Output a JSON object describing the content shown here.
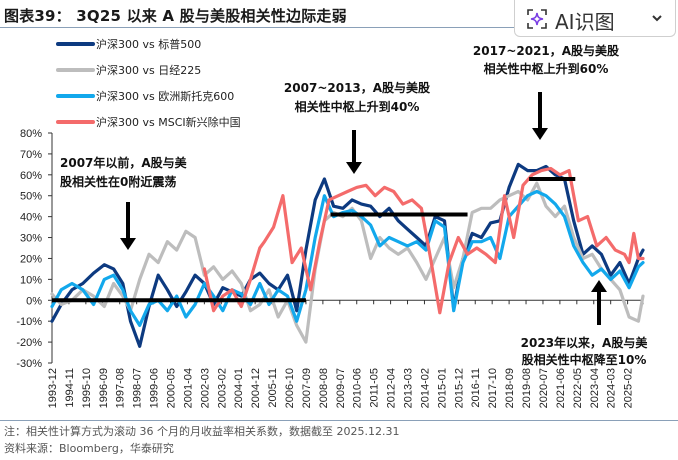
{
  "title": "图表39： 3Q25 以来 A 股与美股相关性边际走弱",
  "ai_button": {
    "label": "AI识图",
    "icon": "sparkle-scan-icon",
    "chevron": "chevron-down-icon",
    "accent": "#7b3fe4"
  },
  "notes": {
    "note": "注：相关性计算方式为滚动 36 个月的月收益率相关系数，数据截至 2025.12.31",
    "source": "资料来源：Bloomberg，华泰研究"
  },
  "chart_data": {
    "type": "line",
    "title": "3Q25 以来 A 股与美股相关性边际走弱",
    "xlabel": "",
    "ylabel": "",
    "ylim": [
      -30,
      80
    ],
    "y_unit": "%",
    "y_ticks": [
      "80%",
      "70%",
      "60%",
      "50%",
      "40%",
      "30%",
      "20%",
      "10%",
      "0%",
      "-10%",
      "-20%",
      "-30%"
    ],
    "x_range": [
      "1993-12",
      "2025-12"
    ],
    "x_ticks": [
      "1993-12",
      "1994-11",
      "1995-10",
      "1996-09",
      "1997-08",
      "1998-07",
      "1999-06",
      "2000-05",
      "2001-04",
      "2002-03",
      "2003-02",
      "2004-01",
      "2004-12",
      "2005-11",
      "2006-10",
      "2007-09",
      "2008-08",
      "2009-07",
      "2010-06",
      "2011-05",
      "2012-04",
      "2013-03",
      "2014-02",
      "2015-01",
      "2015-12",
      "2016-11",
      "2017-10",
      "2018-09",
      "2019-08",
      "2020-07",
      "2021-06",
      "2022-05",
      "2023-04",
      "2024-03",
      "2025-02"
    ],
    "legend_position": "top-left",
    "series": [
      {
        "name": "沪深300 vs 标普500",
        "color": "#0d3a80",
        "x": [
          "1993-12",
          "1994-06",
          "1995-01",
          "1995-08",
          "1996-03",
          "1996-10",
          "1997-04",
          "1997-10",
          "1998-03",
          "1998-09",
          "1999-03",
          "1999-09",
          "2000-03",
          "2000-09",
          "2001-03",
          "2001-09",
          "2002-03",
          "2002-09",
          "2003-03",
          "2003-09",
          "2004-03",
          "2004-09",
          "2005-03",
          "2005-09",
          "2006-03",
          "2006-09",
          "2007-03",
          "2007-09",
          "2008-03",
          "2008-09",
          "2009-03",
          "2009-09",
          "2010-03",
          "2010-09",
          "2011-03",
          "2011-09",
          "2012-03",
          "2012-09",
          "2013-03",
          "2013-09",
          "2014-03",
          "2014-09",
          "2015-03",
          "2015-09",
          "2016-03",
          "2016-09",
          "2017-03",
          "2017-09",
          "2018-03",
          "2018-09",
          "2019-03",
          "2019-09",
          "2020-03",
          "2020-09",
          "2021-03",
          "2021-09",
          "2022-03",
          "2022-09",
          "2023-03",
          "2023-09",
          "2024-03",
          "2024-09",
          "2025-03",
          "2025-09",
          "2025-12"
        ],
        "values": [
          -10,
          -2,
          5,
          8,
          13,
          17,
          15,
          8,
          -10,
          -22,
          -3,
          12,
          5,
          -3,
          4,
          12,
          8,
          -2,
          6,
          4,
          2,
          10,
          13,
          8,
          5,
          12,
          -5,
          24,
          48,
          58,
          45,
          44,
          48,
          46,
          45,
          40,
          44,
          38,
          34,
          30,
          26,
          40,
          38,
          -4,
          20,
          32,
          30,
          37,
          38,
          54,
          65,
          62,
          62,
          64,
          60,
          58,
          38,
          22,
          26,
          22,
          12,
          18,
          8,
          20,
          24
        ]
      },
      {
        "name": "沪深300 vs 日经225",
        "color": "#bdbdbd",
        "x": [
          "1993-12",
          "1994-06",
          "1995-01",
          "1995-08",
          "1996-03",
          "1996-10",
          "1997-04",
          "1997-10",
          "1998-03",
          "1998-09",
          "1999-03",
          "1999-09",
          "2000-03",
          "2000-09",
          "2001-03",
          "2001-09",
          "2002-03",
          "2002-09",
          "2003-03",
          "2003-09",
          "2004-03",
          "2004-09",
          "2005-03",
          "2005-09",
          "2006-03",
          "2006-09",
          "2007-03",
          "2007-09",
          "2008-03",
          "2008-09",
          "2009-03",
          "2009-09",
          "2010-03",
          "2010-09",
          "2011-03",
          "2011-09",
          "2012-03",
          "2012-09",
          "2013-03",
          "2013-09",
          "2014-03",
          "2014-09",
          "2015-03",
          "2015-09",
          "2016-03",
          "2016-09",
          "2017-03",
          "2017-09",
          "2018-03",
          "2018-09",
          "2019-03",
          "2019-09",
          "2020-03",
          "2020-09",
          "2021-03",
          "2021-09",
          "2022-03",
          "2022-09",
          "2023-03",
          "2023-09",
          "2024-03",
          "2024-09",
          "2025-03",
          "2025-09",
          "2025-12"
        ],
        "values": [
          3,
          -2,
          0,
          5,
          2,
          -3,
          8,
          2,
          -5,
          10,
          22,
          18,
          28,
          24,
          33,
          30,
          12,
          16,
          10,
          14,
          8,
          -5,
          -2,
          5,
          -8,
          0,
          -12,
          -20,
          15,
          38,
          42,
          40,
          44,
          38,
          20,
          30,
          25,
          22,
          25,
          18,
          10,
          20,
          30,
          6,
          20,
          42,
          44,
          44,
          48,
          50,
          52,
          48,
          56,
          45,
          40,
          45,
          30,
          20,
          22,
          15,
          10,
          5,
          -8,
          -10,
          2
        ]
      },
      {
        "name": "沪深300 vs 欧洲斯托克600",
        "color": "#12a8ec",
        "x": [
          "1993-12",
          "1994-06",
          "1995-01",
          "1995-08",
          "1996-03",
          "1996-10",
          "1997-04",
          "1997-10",
          "1998-03",
          "1998-09",
          "1999-03",
          "1999-09",
          "2000-03",
          "2000-09",
          "2001-03",
          "2001-09",
          "2002-03",
          "2002-09",
          "2003-03",
          "2003-09",
          "2004-03",
          "2004-09",
          "2005-03",
          "2005-09",
          "2006-03",
          "2006-09",
          "2007-03",
          "2007-09",
          "2008-03",
          "2008-09",
          "2009-03",
          "2009-09",
          "2010-03",
          "2010-09",
          "2011-03",
          "2011-09",
          "2012-03",
          "2012-09",
          "2013-03",
          "2013-09",
          "2014-03",
          "2014-09",
          "2015-03",
          "2015-09",
          "2016-03",
          "2016-09",
          "2017-03",
          "2017-09",
          "2018-03",
          "2018-09",
          "2019-03",
          "2019-09",
          "2020-03",
          "2020-09",
          "2021-03",
          "2021-09",
          "2022-03",
          "2022-09",
          "2023-03",
          "2023-09",
          "2024-03",
          "2024-09",
          "2025-03",
          "2025-09",
          "2025-12"
        ],
        "values": [
          -3,
          5,
          8,
          5,
          -2,
          10,
          12,
          5,
          -5,
          -12,
          -2,
          0,
          -5,
          2,
          -8,
          -2,
          8,
          2,
          -5,
          5,
          3,
          -2,
          8,
          -2,
          5,
          2,
          -10,
          5,
          30,
          50,
          40,
          42,
          43,
          40,
          36,
          26,
          30,
          28,
          26,
          28,
          24,
          38,
          35,
          -5,
          18,
          28,
          28,
          30,
          20,
          40,
          45,
          50,
          52,
          50,
          46,
          40,
          26,
          18,
          12,
          15,
          10,
          14,
          6,
          16,
          18
        ]
      },
      {
        "name": "沪深300 vs MSCI新兴除中国",
        "color": "#f46b6b",
        "x": [
          "2002-03",
          "2002-09",
          "2003-03",
          "2003-09",
          "2004-03",
          "2004-09",
          "2005-03",
          "2005-06",
          "2005-12",
          "2006-06",
          "2006-12",
          "2007-06",
          "2007-12",
          "2008-06",
          "2008-12",
          "2009-06",
          "2009-12",
          "2010-06",
          "2010-12",
          "2011-06",
          "2011-12",
          "2012-06",
          "2012-12",
          "2013-06",
          "2013-12",
          "2014-06",
          "2014-12",
          "2015-06",
          "2015-12",
          "2016-06",
          "2016-12",
          "2017-06",
          "2017-12",
          "2018-06",
          "2018-12",
          "2019-06",
          "2019-12",
          "2020-06",
          "2020-12",
          "2021-06",
          "2021-12",
          "2022-06",
          "2022-12",
          "2023-06",
          "2023-12",
          "2024-06",
          "2024-12",
          "2025-03",
          "2025-06",
          "2025-09",
          "2025-12"
        ],
        "values": [
          15,
          -5,
          2,
          5,
          -3,
          10,
          25,
          28,
          35,
          50,
          18,
          25,
          5,
          28,
          48,
          50,
          52,
          54,
          55,
          50,
          54,
          52,
          46,
          48,
          44,
          20,
          -6,
          18,
          30,
          22,
          25,
          22,
          18,
          50,
          30,
          55,
          60,
          62,
          63,
          60,
          62,
          38,
          40,
          26,
          30,
          24,
          22,
          18,
          32,
          20,
          20
        ]
      }
    ],
    "annotations": [
      {
        "text": "2007年以前，A股与美股相关性在0附近震荡",
        "line1": "2007年以前，A股与美",
        "line2": "股相关性在0附近震荡",
        "arrow": "down",
        "level_line": {
          "from": "1993-12",
          "to": "2007-09",
          "value": 0
        }
      },
      {
        "text": "2007~2013，A股与美股相关性中枢上升到40%",
        "line1": "2007~2013，A股与美股",
        "line2": "相关性中枢上升到40%",
        "arrow": "down",
        "level_line": {
          "from": "2009-01",
          "to": "2016-06",
          "value": 41
        }
      },
      {
        "text": "2017~2021，A股与美股相关性中枢上升到60%",
        "line1": "2017~2021，A股与美股",
        "line2": "相关性中枢上升到60%",
        "arrow": "down",
        "level_line": {
          "from": "2019-10",
          "to": "2022-04",
          "value": 58
        }
      },
      {
        "text": "2023年以来，A股与美股相关性中枢降至10%",
        "line1": "2023年以来，A股与美",
        "line2": "股相关性中枢降至10%",
        "arrow": "up"
      }
    ]
  }
}
